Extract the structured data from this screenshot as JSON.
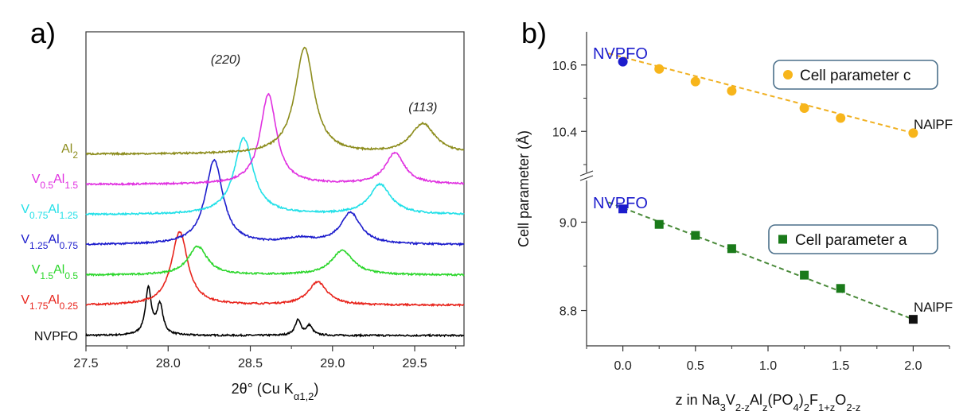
{
  "chart_data": [
    {
      "type": "line",
      "panel_label": "a)",
      "xlabel": "2θ° (Cu Kα1,2)",
      "xlim": [
        27.5,
        29.8
      ],
      "x_ticks": [
        "27.5",
        "28.0",
        "28.5",
        "29.0",
        "29.5"
      ],
      "annotations": [
        {
          "text": "(220)",
          "x": 28.35
        },
        {
          "text": "(113)",
          "x": 29.55
        }
      ],
      "series": [
        {
          "label": {
            "main": "NVPFO",
            "parts": []
          },
          "color": "#000000",
          "baseline": 0.0,
          "peaks": [
            {
              "c": 27.88,
              "h": 1.7,
              "w": 0.022
            },
            {
              "c": 27.95,
              "h": 1.1,
              "w": 0.022
            },
            {
              "c": 28.79,
              "h": 0.55,
              "w": 0.022
            },
            {
              "c": 28.86,
              "h": 0.35,
              "w": 0.022
            }
          ]
        },
        {
          "label": {
            "main": "",
            "parts": [
              {
                "t": "V",
                "s": "1.75"
              },
              {
                "t": "Al",
                "s": "0.25"
              }
            ]
          },
          "color": "#e8241c",
          "baseline": 1.0,
          "peaks": [
            {
              "c": 28.07,
              "h": 2.7,
              "w": 0.06
            },
            {
              "c": 28.91,
              "h": 0.85,
              "w": 0.07
            }
          ]
        },
        {
          "label": {
            "main": "",
            "parts": [
              {
                "t": "V",
                "s": "1.5"
              },
              {
                "t": "Al",
                "s": "0.5"
              }
            ]
          },
          "color": "#2bd62b",
          "baseline": 2.0,
          "peaks": [
            {
              "c": 28.18,
              "h": 1.05,
              "w": 0.07
            },
            {
              "c": 29.06,
              "h": 0.9,
              "w": 0.08
            }
          ]
        },
        {
          "label": {
            "main": "",
            "parts": [
              {
                "t": "V",
                "s": "1.25"
              },
              {
                "t": "Al",
                "s": "0.75"
              }
            ]
          },
          "color": "#1c1ccc",
          "baseline": 3.0,
          "peaks": [
            {
              "c": 28.28,
              "h": 3.1,
              "w": 0.065
            },
            {
              "c": 29.11,
              "h": 1.15,
              "w": 0.075
            },
            {
              "c": 28.8,
              "h": 0.2,
              "w": 0.12
            }
          ]
        },
        {
          "label": {
            "main": "",
            "parts": [
              {
                "t": "V",
                "s": "0.75"
              },
              {
                "t": "Al",
                "s": "1.25"
              }
            ]
          },
          "color": "#22e0e8",
          "baseline": 4.0,
          "peaks": [
            {
              "c": 28.46,
              "h": 2.8,
              "w": 0.07
            },
            {
              "c": 29.29,
              "h": 1.1,
              "w": 0.08
            }
          ]
        },
        {
          "label": {
            "main": "",
            "parts": [
              {
                "t": "V",
                "s": "0.5"
              },
              {
                "t": "Al",
                "s": "1.5"
              }
            ]
          },
          "color": "#e030e0",
          "baseline": 5.0,
          "peaks": [
            {
              "c": 28.61,
              "h": 3.3,
              "w": 0.06
            },
            {
              "c": 29.38,
              "h": 1.15,
              "w": 0.07
            }
          ]
        },
        {
          "label": {
            "main": "",
            "parts": [
              {
                "t": "Al",
                "s": "2"
              }
            ]
          },
          "color": "#8c8c1c",
          "baseline": 6.0,
          "peaks": [
            {
              "c": 28.83,
              "h": 3.9,
              "w": 0.07
            },
            {
              "c": 29.55,
              "h": 1.1,
              "w": 0.09
            }
          ]
        }
      ]
    },
    {
      "type": "scatter",
      "panel_label": "b)",
      "ylabel": "Cell parameter  (Å)",
      "xlabel": {
        "text": "z  in ",
        "formula": [
          {
            "t": "Na",
            "s": "3"
          },
          {
            "t": "V",
            "s": "2-z"
          },
          {
            "t": "Al",
            "s": "z"
          },
          {
            "t": "(PO",
            "s": "4"
          },
          {
            "t": ")",
            "s": "2"
          },
          {
            "t": "F",
            "s": "1+z"
          },
          {
            "t": "O",
            "s": "2-z"
          }
        ]
      },
      "xlim": [
        -0.25,
        2.25
      ],
      "x_ticks": [
        "0.0",
        "0.5",
        "1.0",
        "1.5",
        "2.0"
      ],
      "broken_axis": true,
      "upper": {
        "ylim": [
          10.3,
          10.7
        ],
        "y_ticks": [
          "10.4",
          "10.6"
        ],
        "series": {
          "name": "Cell parameter c",
          "color": "#f7b51b",
          "marker": "circle",
          "x": [
            0,
            0.25,
            0.5,
            0.75,
            1.25,
            1.5,
            2.0
          ],
          "y": [
            10.61,
            10.588,
            10.55,
            10.522,
            10.47,
            10.44,
            10.395
          ],
          "point_colors": [
            "#1c1ccc",
            "#f7b51b",
            "#f7b51b",
            "#f7b51b",
            "#f7b51b",
            "#f7b51b",
            "#f7b51b"
          ],
          "fit": [
            [
              -0.1,
              10.635
            ],
            [
              2.0,
              10.395
            ]
          ]
        },
        "start_label": "NVPFO",
        "end_label": "NAlPF"
      },
      "lower": {
        "ylim": [
          8.72,
          9.08
        ],
        "y_ticks": [
          "8.8",
          "9.0"
        ],
        "series": {
          "name": "Cell parameter a",
          "color": "#1a7a1a",
          "marker": "square",
          "x": [
            0,
            0.25,
            0.5,
            0.75,
            1.25,
            1.5,
            2.0
          ],
          "y": [
            9.03,
            8.995,
            8.97,
            8.94,
            8.88,
            8.85,
            8.78
          ],
          "point_colors": [
            "#1c1ccc",
            "#1a7a1a",
            "#1a7a1a",
            "#1a7a1a",
            "#1a7a1a",
            "#1a7a1a",
            "#111111"
          ],
          "fit": [
            [
              -0.1,
              9.045
            ],
            [
              2.0,
              8.78
            ]
          ]
        },
        "start_label": "NVPFO",
        "end_label": "NAlPF"
      }
    }
  ],
  "colors": {
    "legend_border": "#4a6f8a",
    "fit_c": "#f0b020",
    "fit_a": "#4a8a3a",
    "fu_label": "#1c1ccc"
  }
}
